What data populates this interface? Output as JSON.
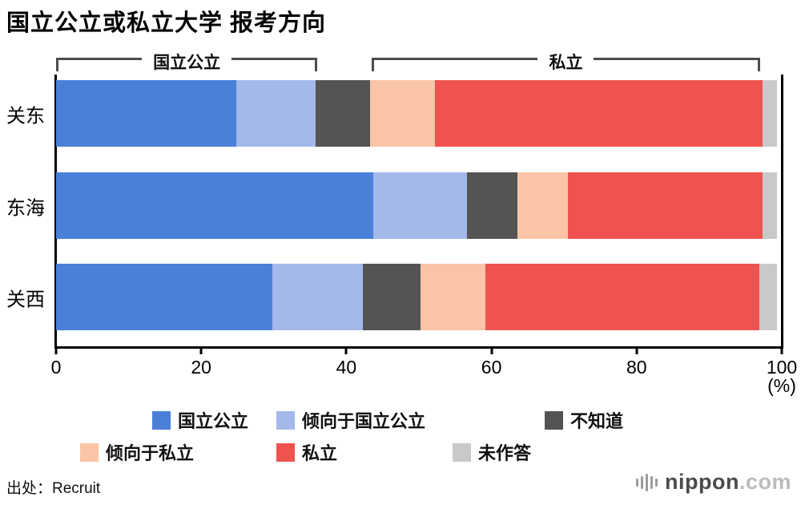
{
  "title": "国立公立或私立大学 报考方向",
  "source": "出处：Recruit",
  "logo": {
    "name": "nippon",
    "tld": ".com"
  },
  "chart_data": {
    "type": "bar",
    "orientation": "horizontal",
    "stacked": true,
    "title": "国立公立或私立大学 报考方向",
    "categories": [
      "关东",
      "东海",
      "关西"
    ],
    "series": [
      {
        "name": "国立公立",
        "color": "#4a80d8",
        "values": [
          25,
          44,
          30
        ]
      },
      {
        "name": "倾向于国立公立",
        "color": "#a3b9ea",
        "values": [
          11,
          13,
          12.5
        ]
      },
      {
        "name": "不知道",
        "color": "#545454",
        "values": [
          7.5,
          7,
          8
        ]
      },
      {
        "name": "倾向于私立",
        "color": "#f9c5a6",
        "values": [
          9,
          7,
          9
        ]
      },
      {
        "name": "私立",
        "color": "#ee534f",
        "values": [
          45.5,
          27,
          38
        ]
      },
      {
        "name": "未作答",
        "color": "#c9c9c9",
        "values": [
          2,
          2,
          2.5
        ]
      }
    ],
    "xlim": [
      0,
      100
    ],
    "x_ticks": [
      0,
      20,
      40,
      60,
      80,
      100
    ],
    "x_unit": "(%)",
    "grid": false,
    "legend_position": "bottom",
    "brackets": [
      {
        "label": "国立公立",
        "from": 0,
        "to": 36
      },
      {
        "label": "私立",
        "from": 43.5,
        "to": 97
      }
    ],
    "legend_rows": [
      [
        "国立公立",
        "倾向于国立公立",
        "不知道"
      ],
      [
        "倾向于私立",
        "私立",
        "未作答"
      ]
    ]
  }
}
